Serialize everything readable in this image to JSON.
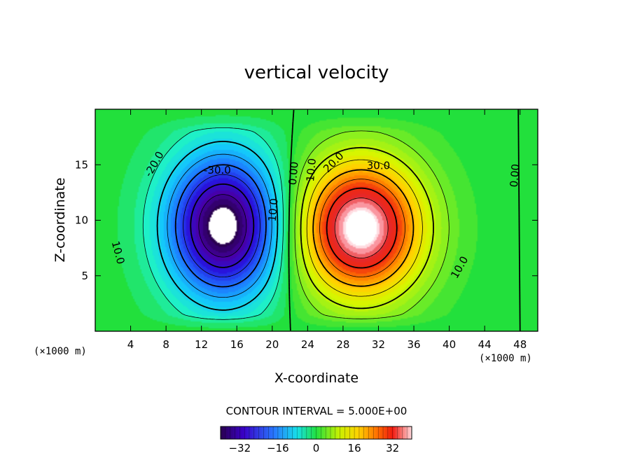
{
  "chart_data": {
    "type": "contour",
    "title": "vertical velocity",
    "xlabel": "X-coordinate",
    "ylabel": "Z-coordinate",
    "x_unit": "(×1000 m)",
    "z_unit": "(×1000 m)",
    "xlim": [
      0,
      50
    ],
    "ylim": [
      0,
      20
    ],
    "x_ticks": [
      4,
      8,
      12,
      16,
      20,
      24,
      28,
      32,
      36,
      40,
      44,
      48
    ],
    "y_ticks": [
      5,
      10,
      15
    ],
    "contour_interval_text": "CONTOUR INTERVAL = 5.000E+00",
    "contour_interval": 5,
    "value_range": [
      -40,
      40
    ],
    "colorbar_ticks": [
      -32,
      -16,
      0,
      16,
      32
    ],
    "contour_labels": [
      {
        "text": "-30.0",
        "x": 13.8,
        "z": 14.2
      },
      {
        "text": "-20.0",
        "x": 7.0,
        "z": 14.9
      },
      {
        "text": "10.0",
        "x": 2.2,
        "z": 7.0
      },
      {
        "text": "10.0",
        "x": 20.5,
        "z": 10.9
      },
      {
        "text": "0.00",
        "x": 22.8,
        "z": 14.2
      },
      {
        "text": "10.0",
        "x": 24.8,
        "z": 14.5
      },
      {
        "text": "20.0",
        "x": 27.2,
        "z": 15.0
      },
      {
        "text": "30.0",
        "x": 32.0,
        "z": 14.6
      },
      {
        "text": "10.0",
        "x": 41.5,
        "z": 5.6
      },
      {
        "text": "0.00",
        "x": 47.8,
        "z": 14.0
      }
    ],
    "features": [
      {
        "type": "downdraft",
        "center_x": 14.5,
        "center_z": 9.5,
        "min_value": -40
      },
      {
        "type": "updraft",
        "center_x": 30.0,
        "center_z": 9.3,
        "max_value": 40
      }
    ]
  }
}
